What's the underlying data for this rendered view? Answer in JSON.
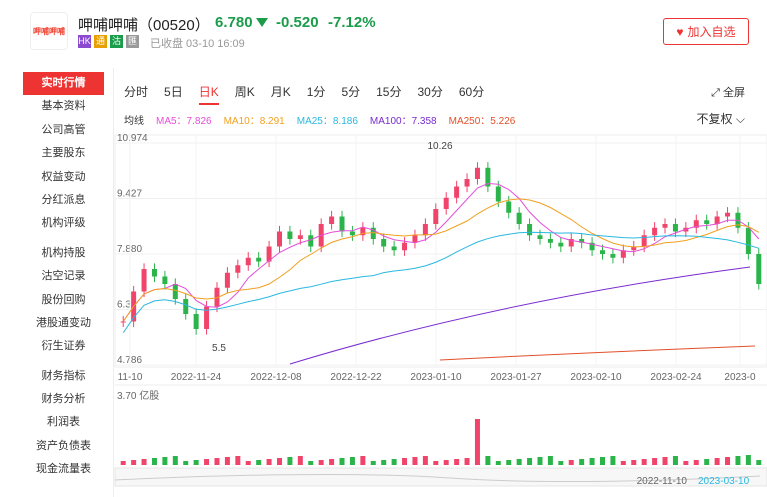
{
  "header": {
    "logo_text": "呷哺呷哺",
    "stock_name": "呷哺呷哺（00520）",
    "price": "6.780",
    "change": "-0.520",
    "change_pct": "-7.12%",
    "tags": [
      {
        "t": "HK",
        "c": "#8a4bd1"
      },
      {
        "t": "通",
        "c": "#e8a000"
      },
      {
        "t": "沽",
        "c": "#1a9c4a"
      },
      {
        "t": "匯",
        "c": "#999"
      }
    ],
    "status": "已收盘 03-10 16:09",
    "watch_label": "加入自选"
  },
  "sidebar": {
    "items": [
      "实时行情",
      "基本资料",
      "公司高管",
      "主要股东",
      "权益变动",
      "分红派息",
      "机构评级",
      "|",
      "机构持股",
      "沽空记录",
      "股份回购",
      "港股通变动",
      "衍生证券",
      "|",
      "财务指标",
      "财务分析",
      "利润表",
      "资产负债表",
      "现金流量表"
    ]
  },
  "tabs": [
    "分时",
    "5日",
    "日K",
    "周K",
    "月K",
    "1分",
    "5分",
    "15分",
    "30分",
    "60分"
  ],
  "fullscreen": "全屏",
  "ma": {
    "label": "均线",
    "items": [
      {
        "t": "MA5：7.826",
        "c": "#e54fd8"
      },
      {
        "t": "MA10：8.291",
        "c": "#f0a020"
      },
      {
        "t": "MA25：8.186",
        "c": "#29b8e0"
      },
      {
        "t": "MA100：7.358",
        "c": "#7a2bcf"
      },
      {
        "t": "MA250：5.226",
        "c": "#e2502a"
      }
    ]
  },
  "adjust": "不复权",
  "chart_data": {
    "type": "candlestick",
    "yticks": [
      "10.974",
      "9.427",
      "7.880",
      "6.3",
      "4.786"
    ],
    "ylim": [
      4.786,
      10.974
    ],
    "high_label": "10.26",
    "low_label": "5.5",
    "xticks": [
      "11-10",
      "2022-11-24",
      "2022-12-08",
      "2022-12-22",
      "2023-01-10",
      "2023-01-27",
      "2023-02-10",
      "2023-02-24",
      "2023-0"
    ],
    "volume_label": "3.70 亿股",
    "range_start": "2022-11-10",
    "range_end": "2023-03-10"
  }
}
